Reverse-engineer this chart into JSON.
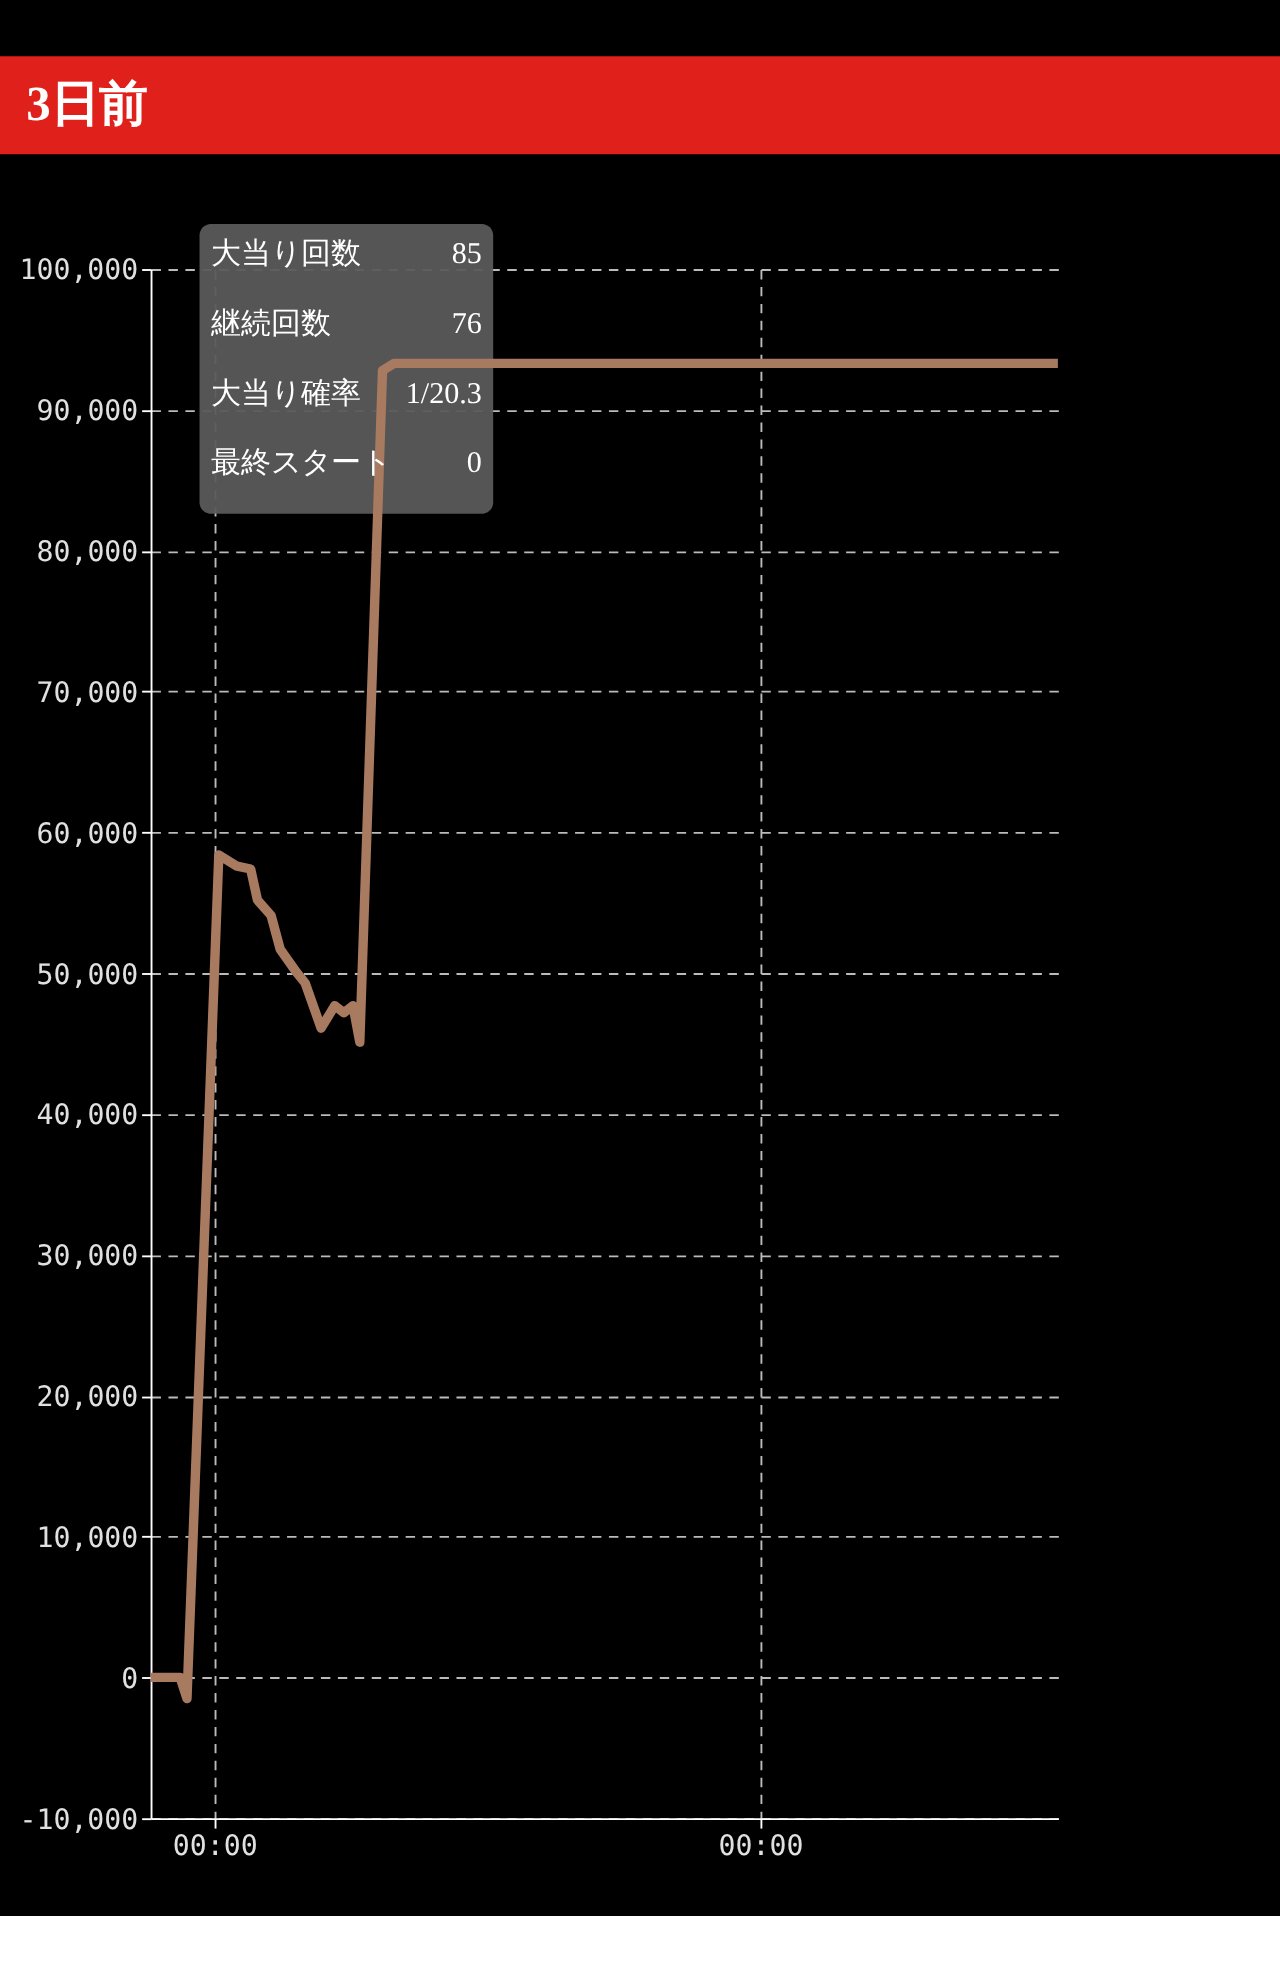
{
  "chart_data": {
    "type": "line",
    "title": "3日前",
    "x": [
      0,
      1.3,
      1.6,
      3.0,
      3.8,
      4.4,
      4.7,
      5.3,
      5.7,
      6.4,
      6.8,
      7.5,
      8.1,
      8.5,
      8.9,
      9.2,
      10.2,
      10.7,
      39.9
    ],
    "series": [
      {
        "color": "#a87a60",
        "values": [
          0,
          0,
          -1500,
          58400,
          57600,
          57400,
          55200,
          54100,
          51700,
          50100,
          49300,
          46100,
          47700,
          47200,
          47700,
          45100,
          92800,
          93300,
          93300
        ]
      }
    ],
    "xlim": [
      0,
      39.9
    ],
    "xticks": [
      {
        "value": 2.8,
        "label": "00:00"
      },
      {
        "value": 26.8,
        "label": "00:00"
      }
    ],
    "ylim": [
      -10000,
      100000
    ],
    "yticks": [
      {
        "value": -10000,
        "label": "-10,000"
      },
      0,
      {
        "value": 10000,
        "label": "10,000"
      },
      {
        "value": 20000,
        "label": "20,000"
      },
      {
        "value": 30000,
        "label": "30,000"
      },
      {
        "value": 40000,
        "label": "40,000"
      },
      {
        "value": 50000,
        "label": "50,000"
      },
      {
        "value": 60000,
        "label": "60,000"
      },
      {
        "value": 70000,
        "label": "70,000"
      },
      {
        "value": 80000,
        "label": "80,000"
      },
      {
        "value": 90000,
        "label": "90,000"
      },
      {
        "value": 100000,
        "label": "100,000"
      }
    ],
    "grid": true,
    "marker": "none",
    "line_style": "solid",
    "annotations": [
      "大当り回数",
      "85",
      "継続回数",
      "76",
      "大当り確率",
      "1/20.3",
      "最終スタート",
      "0"
    ]
  }
}
